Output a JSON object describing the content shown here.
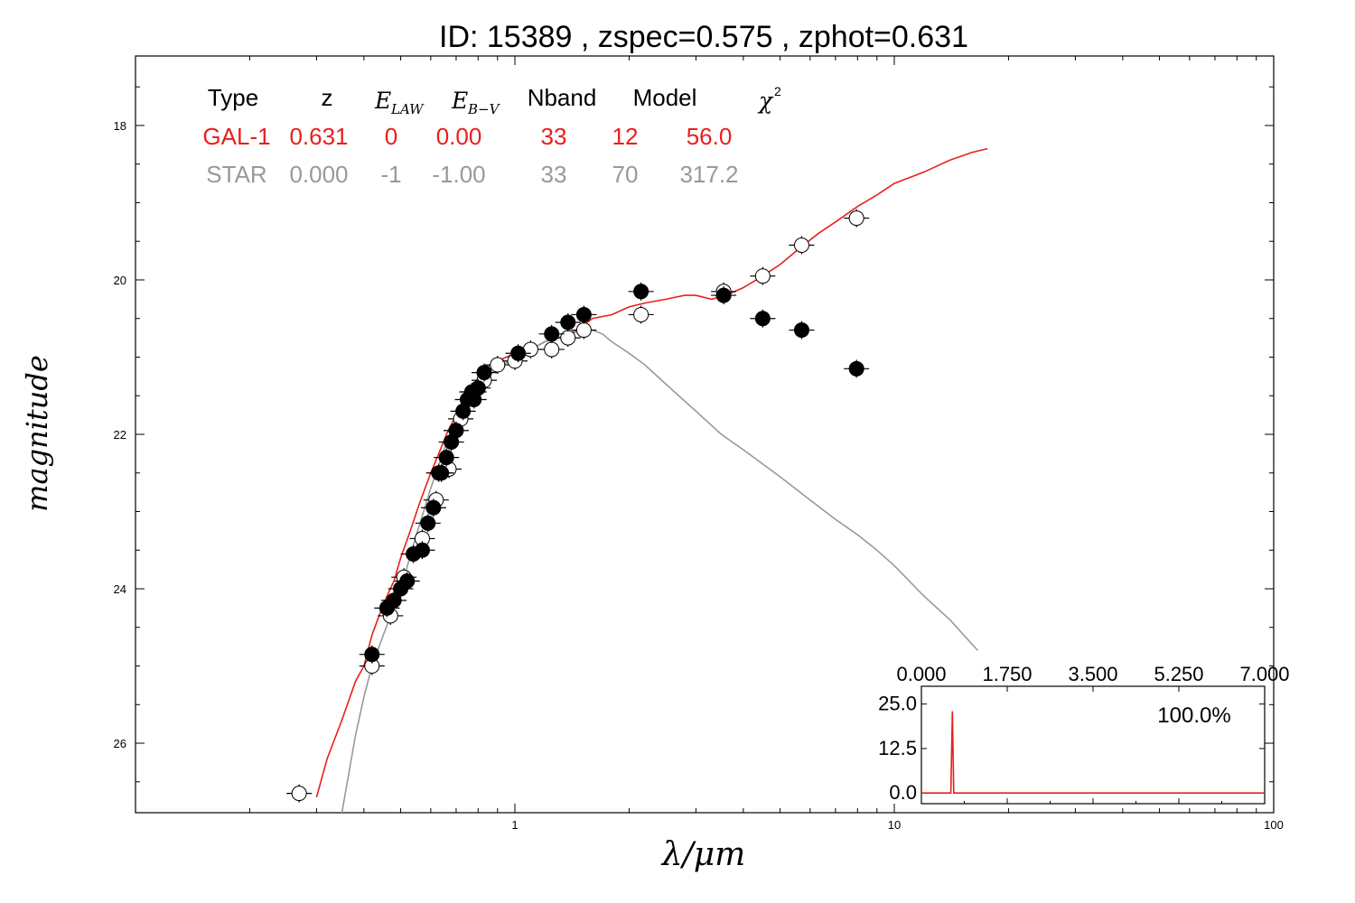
{
  "title": "ID:  15389 , zspec=0.575 , zphot=0.631",
  "xlabel": "λ/μm",
  "ylabel": "magnitude",
  "xticks": [
    "1",
    "10",
    "100"
  ],
  "yticks": [
    "18",
    "20",
    "22",
    "24",
    "26"
  ],
  "legend_table": {
    "headers": [
      "Type",
      "z",
      "E_LAW",
      "E_B-V",
      "Nband",
      "Model",
      "χ²"
    ],
    "rows": [
      {
        "name": "gal",
        "color": "#e8201c",
        "cells": [
          "GAL-1",
          "0.631",
          "0",
          "0.00",
          "33",
          "12",
          "56.0"
        ]
      },
      {
        "name": "star",
        "color": "#999999",
        "cells": [
          "STAR",
          "0.000",
          "-1",
          "-1.00",
          "33",
          "70",
          "317.2"
        ]
      }
    ]
  },
  "inset": {
    "xticks": [
      "0.000",
      "1.750",
      "3.500",
      "5.250",
      "7.000"
    ],
    "yticks": [
      "25.0",
      "12.5",
      "0.0"
    ],
    "annotation": "100.0%",
    "color": "#e8201c"
  },
  "chart_data": [
    {
      "type": "scatter",
      "title": "ID:  15389 , zspec=0.575 , zphot=0.631",
      "xlabel": "λ/μm",
      "ylabel": "magnitude",
      "xscale": "log",
      "xlim": [
        0.1,
        100
      ],
      "ylim": [
        26.9,
        17.1
      ],
      "grid": false,
      "series": [
        {
          "name": "GAL-1",
          "kind": "line",
          "color": "#e8201c",
          "x": [
            0.3,
            0.32,
            0.35,
            0.38,
            0.4,
            0.42,
            0.45,
            0.48,
            0.5,
            0.53,
            0.56,
            0.6,
            0.63,
            0.66,
            0.7,
            0.74,
            0.78,
            0.82,
            0.86,
            0.9,
            0.95,
            1.0,
            1.05,
            1.1,
            1.15,
            1.2,
            1.3,
            1.4,
            1.5,
            1.6,
            1.8,
            2.0,
            2.2,
            2.5,
            2.8,
            3.0,
            3.3,
            3.6,
            4.0,
            4.5,
            5.0,
            5.6,
            6.3,
            7.0,
            8.0,
            9.0,
            10.0,
            12.0,
            14.0,
            16.0,
            17.6
          ],
          "y": [
            26.7,
            26.2,
            25.7,
            25.2,
            25.0,
            24.6,
            24.2,
            23.9,
            23.6,
            23.25,
            22.9,
            22.5,
            22.25,
            22.0,
            21.75,
            21.5,
            21.35,
            21.2,
            21.1,
            21.05,
            21.0,
            20.95,
            20.95,
            20.9,
            20.85,
            20.8,
            20.75,
            20.7,
            20.6,
            20.5,
            20.45,
            20.35,
            20.3,
            20.25,
            20.2,
            20.2,
            20.25,
            20.2,
            20.1,
            19.95,
            19.8,
            19.6,
            19.4,
            19.25,
            19.05,
            18.9,
            18.75,
            18.6,
            18.45,
            18.35,
            18.3
          ]
        },
        {
          "name": "STAR",
          "kind": "line",
          "color": "#999999",
          "x": [
            0.35,
            0.38,
            0.4,
            0.42,
            0.45,
            0.5,
            0.55,
            0.6,
            0.65,
            0.7,
            0.75,
            0.8,
            0.9,
            1.0,
            1.1,
            1.2,
            1.3,
            1.4,
            1.5,
            1.6,
            1.7,
            1.8,
            2.0,
            2.2,
            2.5,
            3.0,
            3.5,
            4.0,
            5.0,
            6.0,
            7.0,
            8.0,
            9.0,
            10.0,
            12.0,
            14.0,
            16.6
          ],
          "y": [
            26.9,
            25.9,
            25.4,
            25.0,
            24.6,
            24.0,
            23.3,
            22.7,
            22.2,
            21.8,
            21.6,
            21.35,
            21.15,
            21.0,
            20.9,
            20.8,
            20.75,
            20.7,
            20.65,
            20.65,
            20.7,
            20.8,
            20.95,
            21.1,
            21.35,
            21.7,
            22.0,
            22.2,
            22.55,
            22.85,
            23.1,
            23.3,
            23.5,
            23.7,
            24.1,
            24.4,
            24.8
          ]
        },
        {
          "name": "observed",
          "kind": "points",
          "marker": "filled",
          "x": [
            0.42,
            0.46,
            0.48,
            0.5,
            0.52,
            0.54,
            0.57,
            0.59,
            0.61,
            0.63,
            0.64,
            0.66,
            0.68,
            0.7,
            0.73,
            0.75,
            0.77,
            0.78,
            0.8,
            0.83,
            1.02,
            1.25,
            1.38,
            1.52,
            2.15,
            3.55,
            4.5,
            5.7,
            7.95
          ],
          "y": [
            24.85,
            24.25,
            24.15,
            24.0,
            23.9,
            23.55,
            23.5,
            23.15,
            22.95,
            22.5,
            22.5,
            22.3,
            22.1,
            21.95,
            21.7,
            21.55,
            21.45,
            21.55,
            21.4,
            21.2,
            20.95,
            20.7,
            20.55,
            20.45,
            20.15,
            20.2,
            20.5,
            20.65,
            21.15
          ]
        },
        {
          "name": "model",
          "kind": "points",
          "marker": "open",
          "x": [
            0.27,
            0.42,
            0.47,
            0.51,
            0.57,
            0.62,
            0.67,
            0.72,
            0.78,
            0.83,
            0.9,
            1.0,
            1.1,
            1.25,
            1.38,
            1.52,
            2.15,
            3.55,
            4.5,
            5.7,
            7.95
          ],
          "y": [
            26.65,
            25.0,
            24.35,
            23.85,
            23.35,
            22.85,
            22.45,
            21.8,
            21.45,
            21.3,
            21.1,
            21.05,
            20.9,
            20.9,
            20.75,
            20.65,
            20.45,
            20.15,
            19.95,
            19.55,
            19.2
          ]
        }
      ]
    },
    {
      "type": "line",
      "name": "inset",
      "xlim": [
        0,
        7
      ],
      "ylim": [
        -3,
        30
      ],
      "series": [
        {
          "name": "pdz",
          "color": "#e8201c",
          "x": [
            0.0,
            0.55,
            0.6,
            0.631,
            0.66,
            0.72,
            7.0
          ],
          "y": [
            0.0,
            0.0,
            0.0,
            23.0,
            0.0,
            0.0,
            0.0
          ]
        }
      ]
    }
  ]
}
